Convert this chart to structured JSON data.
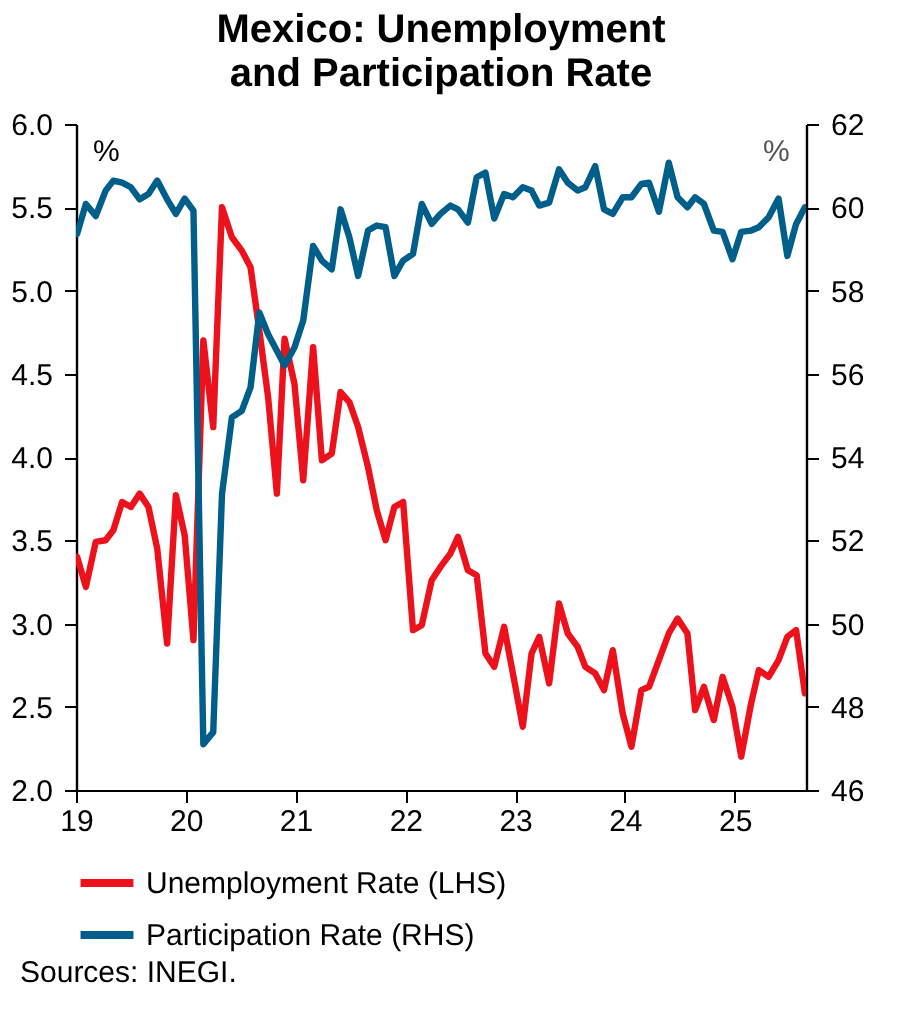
{
  "chart_data": {
    "type": "line",
    "title": "Mexico: Unemployment and Participation Rate",
    "ylabel": "%",
    "y2label": "%",
    "x": [
      19.01,
      19.09,
      19.18,
      19.27,
      19.34,
      19.42,
      19.5,
      19.58,
      19.66,
      19.74,
      19.83,
      19.91,
      19.99,
      20.07,
      20.16,
      20.25,
      20.33,
      20.42,
      20.51,
      20.59,
      20.67,
      20.75,
      20.83,
      20.9,
      20.99,
      21.07,
      21.16,
      21.24,
      21.33,
      21.41,
      21.49,
      21.57,
      21.66,
      21.74,
      21.82,
      21.9,
      21.98,
      22.07,
      22.15,
      22.24,
      22.32,
      22.41,
      22.48,
      22.57,
      22.65,
      22.73,
      22.81,
      22.9,
      22.98,
      23.07,
      23.15,
      23.22,
      23.31,
      23.4,
      23.48,
      23.57,
      23.64,
      23.73,
      23.81,
      23.89,
      23.98,
      24.06,
      24.15,
      24.22,
      24.31,
      24.4,
      24.48,
      24.57,
      24.64,
      24.72,
      24.81,
      24.89,
      24.98,
      25.06,
      25.15,
      25.22,
      25.31,
      25.4,
      25.48,
      25.56,
      25.64
    ],
    "series": [
      {
        "name": "Unemployment Rate (LHS)",
        "color": "#ec111a",
        "values": [
          3.4,
          3.22,
          3.49,
          3.5,
          3.56,
          3.73,
          3.7,
          3.78,
          3.7,
          3.45,
          2.88,
          3.77,
          3.53,
          2.9,
          4.7,
          4.18,
          5.5,
          5.32,
          5.24,
          5.14,
          4.76,
          4.36,
          3.78,
          4.71,
          4.44,
          3.86,
          4.66,
          3.98,
          4.02,
          4.39,
          4.33,
          4.18,
          3.94,
          3.68,
          3.5,
          3.7,
          3.73,
          2.96,
          2.99,
          3.26,
          3.34,
          3.42,
          3.52,
          3.32,
          3.29,
          2.82,
          2.74,
          2.98,
          2.7,
          2.38,
          2.82,
          2.92,
          2.64,
          3.12,
          2.94,
          2.86,
          2.74,
          2.7,
          2.6,
          2.84,
          2.46,
          2.26,
          2.6,
          2.62,
          2.78,
          2.94,
          3.03,
          2.94,
          2.48,
          2.62,
          2.42,
          2.68,
          2.5,
          2.2,
          2.52,
          2.72,
          2.68,
          2.78,
          2.92,
          2.96,
          2.58
        ]
      },
      {
        "name": "Participation Rate (RHS)",
        "color": "#005f8a",
        "axis": "y2",
        "values": [
          59.36,
          60.08,
          59.79,
          60.4,
          60.64,
          60.59,
          60.48,
          60.19,
          60.32,
          60.64,
          60.19,
          59.84,
          60.21,
          59.92,
          47.1,
          47.39,
          53.11,
          54.95,
          55.11,
          55.67,
          57.47,
          56.95,
          56.55,
          56.2,
          56.63,
          57.28,
          59.07,
          58.72,
          58.51,
          59.95,
          59.28,
          58.35,
          59.44,
          59.56,
          59.52,
          58.35,
          58.72,
          58.88,
          60.08,
          59.6,
          59.84,
          60.04,
          59.95,
          59.63,
          60.72,
          60.83,
          59.73,
          60.32,
          60.24,
          60.48,
          60.4,
          60.04,
          60.11,
          60.91,
          60.59,
          60.4,
          60.48,
          60.99,
          59.95,
          59.84,
          60.24,
          60.24,
          60.56,
          60.59,
          59.89,
          61.07,
          60.24,
          60.0,
          60.24,
          60.08,
          59.44,
          59.41,
          58.75,
          59.41,
          59.44,
          59.52,
          59.76,
          60.21,
          58.83,
          59.6,
          60.0
        ]
      }
    ],
    "xlim": [
      19,
      25.65
    ],
    "xticks": [
      19,
      20,
      21,
      22,
      23,
      24,
      25
    ],
    "ylim": [
      2,
      6
    ],
    "yticks": [
      {
        "value": 2,
        "label": "2.0"
      },
      2.5,
      {
        "value": 3,
        "label": "3.0"
      },
      3.5,
      {
        "value": 4,
        "label": "4.0"
      },
      4.5,
      {
        "value": 5,
        "label": "5.0"
      },
      5.5,
      {
        "value": 6,
        "label": "6.0"
      }
    ],
    "y2lim": [
      46,
      62
    ],
    "y2ticks": [
      46,
      48,
      50,
      52,
      54,
      56,
      58,
      60,
      62
    ],
    "legend": "bottom",
    "grid": false,
    "annotations": [
      "Sources: INEGI."
    ]
  }
}
